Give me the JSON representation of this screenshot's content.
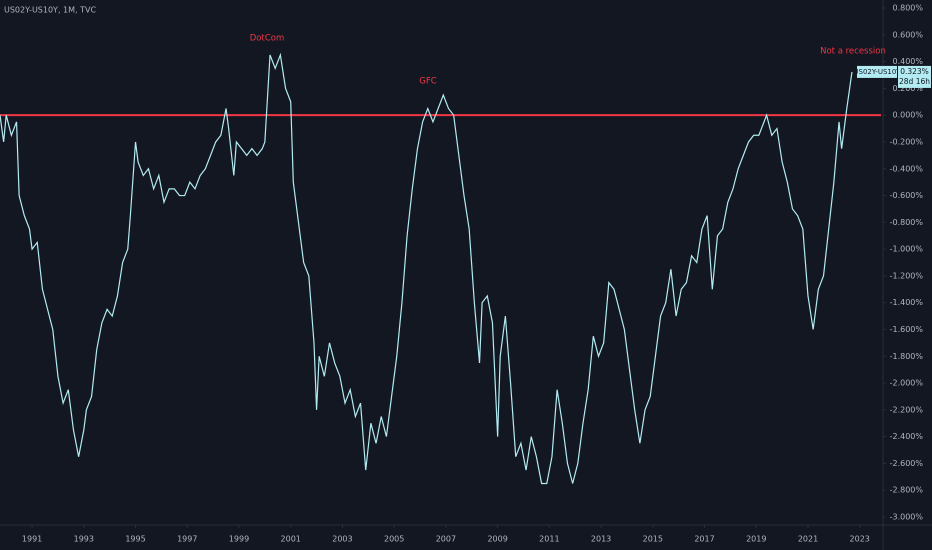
{
  "chart_data": {
    "type": "line",
    "title": "US02Y-US10Y, 1M, TVC",
    "annotations": [
      "DotCom",
      "GFC",
      "Not a recession"
    ],
    "reference_line": 0,
    "reference_color": "#f23645",
    "last_label": {
      "value": 0.323,
      "label": "0.323%"
    },
    "countdown": "28d 16h",
    "xlim": [
      1989.76,
      2023.9
    ],
    "xticks": [
      1991,
      1993,
      1995,
      1997,
      1999,
      2001,
      2003,
      2005,
      2007,
      2009,
      2011,
      2013,
      2015,
      2017,
      2019,
      2021,
      2023
    ],
    "ylim": [
      -3.06,
      0.86
    ],
    "yticks": [
      {
        "value": 0.8,
        "label": "0.800%"
      },
      {
        "value": 0.6,
        "label": "0.600%"
      },
      {
        "value": 0.4,
        "label": "0.400%"
      },
      {
        "value": 0.2,
        "label": "0.200%"
      },
      {
        "value": 0,
        "label": "0.000%"
      },
      {
        "value": -0.2,
        "label": "-0.200%"
      },
      {
        "value": -0.4,
        "label": "-0.400%"
      },
      {
        "value": -0.6,
        "label": "-0.600%"
      },
      {
        "value": -0.8,
        "label": "-0.800%"
      },
      {
        "value": -1.0,
        "label": "-1.000%"
      },
      {
        "value": -1.2,
        "label": "-1.200%"
      },
      {
        "value": -1.4,
        "label": "-1.400%"
      },
      {
        "value": -1.6,
        "label": "-1.600%"
      },
      {
        "value": -1.8,
        "label": "-1.800%"
      },
      {
        "value": -2.0,
        "label": "-2.000%"
      },
      {
        "value": -2.2,
        "label": "-2.200%"
      },
      {
        "value": -2.4,
        "label": "-2.400%"
      },
      {
        "value": -2.6,
        "label": "-2.600%"
      },
      {
        "value": -2.8,
        "label": "-2.800%"
      },
      {
        "value": -3.0,
        "label": "-3.000%"
      }
    ],
    "x": [
      1989.76,
      1989.9,
      1990.0,
      1990.2,
      1990.4,
      1990.5,
      1990.7,
      1990.9,
      1991.0,
      1991.2,
      1991.4,
      1991.6,
      1991.8,
      1992.0,
      1992.2,
      1992.4,
      1992.6,
      1992.8,
      1993.0,
      1993.1,
      1993.3,
      1993.5,
      1993.7,
      1993.9,
      1994.1,
      1994.3,
      1994.5,
      1994.7,
      1994.8,
      1995.0,
      1995.1,
      1995.3,
      1995.5,
      1995.7,
      1995.9,
      1996.1,
      1996.3,
      1996.5,
      1996.7,
      1996.9,
      1997.1,
      1997.3,
      1997.5,
      1997.7,
      1997.9,
      1998.1,
      1998.3,
      1998.5,
      1998.6,
      1998.8,
      1998.9,
      1999.1,
      1999.3,
      1999.5,
      1999.7,
      1999.9,
      2000.0,
      2000.2,
      2000.4,
      2000.6,
      2000.8,
      2001.0,
      2001.1,
      2001.3,
      2001.5,
      2001.7,
      2001.9,
      2002.0,
      2002.1,
      2002.3,
      2002.5,
      2002.7,
      2002.9,
      2003.1,
      2003.3,
      2003.5,
      2003.7,
      2003.9,
      2004.1,
      2004.3,
      2004.5,
      2004.7,
      2004.9,
      2005.1,
      2005.3,
      2005.5,
      2005.7,
      2005.9,
      2006.1,
      2006.3,
      2006.5,
      2006.7,
      2006.9,
      2007.1,
      2007.3,
      2007.5,
      2007.7,
      2007.9,
      2008.1,
      2008.3,
      2008.4,
      2008.6,
      2008.8,
      2009.0,
      2009.1,
      2009.3,
      2009.5,
      2009.7,
      2009.9,
      2010.1,
      2010.3,
      2010.5,
      2010.7,
      2010.9,
      2011.1,
      2011.3,
      2011.5,
      2011.7,
      2011.9,
      2012.1,
      2012.3,
      2012.5,
      2012.7,
      2012.9,
      2013.1,
      2013.3,
      2013.5,
      2013.7,
      2013.9,
      2014.1,
      2014.3,
      2014.5,
      2014.7,
      2014.9,
      2015.1,
      2015.3,
      2015.5,
      2015.7,
      2015.9,
      2016.1,
      2016.3,
      2016.5,
      2016.7,
      2016.9,
      2017.1,
      2017.3,
      2017.5,
      2017.7,
      2017.9,
      2018.1,
      2018.3,
      2018.5,
      2018.7,
      2018.9,
      2019.1,
      2019.3,
      2019.4,
      2019.6,
      2019.8,
      2020.0,
      2020.2,
      2020.4,
      2020.6,
      2020.8,
      2021.0,
      2021.2,
      2021.4,
      2021.6,
      2021.8,
      2022.0,
      2022.2,
      2022.3,
      2022.5,
      2022.7
    ],
    "series": [
      {
        "name": "US02Y-US10Y",
        "color": "#b2ebf2",
        "values": [
          0.0,
          -0.2,
          0.0,
          -0.15,
          -0.05,
          -0.6,
          -0.75,
          -0.85,
          -1.0,
          -0.95,
          -1.3,
          -1.45,
          -1.6,
          -1.95,
          -2.15,
          -2.05,
          -2.35,
          -2.55,
          -2.35,
          -2.2,
          -2.1,
          -1.75,
          -1.55,
          -1.45,
          -1.5,
          -1.35,
          -1.1,
          -1.0,
          -0.75,
          -0.2,
          -0.35,
          -0.45,
          -0.4,
          -0.55,
          -0.45,
          -0.65,
          -0.55,
          -0.55,
          -0.6,
          -0.6,
          -0.5,
          -0.55,
          -0.45,
          -0.4,
          -0.3,
          -0.2,
          -0.15,
          0.05,
          -0.1,
          -0.45,
          -0.2,
          -0.25,
          -0.3,
          -0.25,
          -0.3,
          -0.25,
          -0.2,
          0.45,
          0.35,
          0.45,
          0.2,
          0.1,
          -0.5,
          -0.8,
          -1.1,
          -1.2,
          -1.7,
          -2.2,
          -1.8,
          -1.95,
          -1.7,
          -1.85,
          -1.95,
          -2.15,
          -2.05,
          -2.25,
          -2.15,
          -2.65,
          -2.3,
          -2.45,
          -2.25,
          -2.4,
          -2.1,
          -1.8,
          -1.4,
          -0.9,
          -0.55,
          -0.25,
          -0.05,
          0.05,
          -0.05,
          0.05,
          0.15,
          0.05,
          0.0,
          -0.3,
          -0.6,
          -0.85,
          -1.4,
          -1.85,
          -1.4,
          -1.35,
          -1.55,
          -2.4,
          -1.8,
          -1.5,
          -2.0,
          -2.55,
          -2.45,
          -2.65,
          -2.4,
          -2.55,
          -2.75,
          -2.75,
          -2.55,
          -2.05,
          -2.3,
          -2.6,
          -2.75,
          -2.6,
          -2.3,
          -2.05,
          -1.65,
          -1.8,
          -1.7,
          -1.25,
          -1.3,
          -1.45,
          -1.6,
          -1.9,
          -2.2,
          -2.45,
          -2.2,
          -2.1,
          -1.8,
          -1.5,
          -1.4,
          -1.15,
          -1.5,
          -1.3,
          -1.25,
          -1.05,
          -1.1,
          -0.85,
          -0.75,
          -1.3,
          -0.9,
          -0.85,
          -0.65,
          -0.55,
          -0.4,
          -0.3,
          -0.2,
          -0.15,
          -0.15,
          -0.05,
          0.0,
          -0.15,
          -0.1,
          -0.35,
          -0.5,
          -0.7,
          -0.75,
          -0.85,
          -1.35,
          -1.6,
          -1.3,
          -1.2,
          -0.85,
          -0.5,
          -0.05,
          -0.25,
          0.05,
          0.323
        ]
      }
    ]
  }
}
